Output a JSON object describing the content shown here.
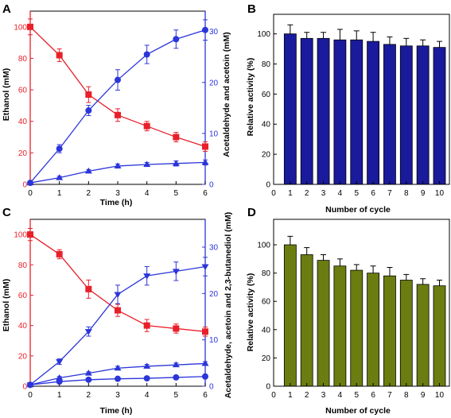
{
  "colors": {
    "red": "#e8202a",
    "blue": "#2b35d9",
    "navy": "#1a1a9c",
    "olive": "#6b7d10"
  },
  "chart_data": [
    {
      "panel": "A",
      "type": "line",
      "xlabel": "Time (h)",
      "ylabel_left": "Ethanol (mM)",
      "ylabel_right": "Acetaldehyde and acetoin (mM)",
      "x": [
        0,
        1,
        2,
        3,
        4,
        5,
        6
      ],
      "xlim": [
        0,
        6
      ],
      "ylim_left": [
        0,
        110
      ],
      "ylim_right": [
        0,
        34
      ],
      "left_ticks": [
        0,
        20,
        40,
        60,
        80,
        100
      ],
      "right_ticks": [
        0,
        10,
        20,
        30
      ],
      "x_ticks": [
        0,
        1,
        2,
        3,
        4,
        5,
        6
      ],
      "series": [
        {
          "axis": "left",
          "marker": "square",
          "color": "#e8202a",
          "values": [
            100,
            82,
            57,
            44,
            37,
            30,
            24
          ],
          "err": [
            5,
            4,
            5,
            4,
            3,
            3,
            3
          ]
        },
        {
          "axis": "right",
          "marker": "circle",
          "color": "#2b35d9",
          "values": [
            0.3,
            7,
            14.5,
            20.5,
            25.5,
            28.5,
            30.3
          ],
          "err": [
            0.3,
            0.8,
            1,
            2,
            1.8,
            1.8,
            2
          ]
        },
        {
          "axis": "right",
          "marker": "triangle-up",
          "color": "#2b35d9",
          "values": [
            0.3,
            1.3,
            2.6,
            3.6,
            3.9,
            4.1,
            4.3
          ],
          "err": [
            0.2,
            0.3,
            0.3,
            0.4,
            0.4,
            0.5,
            0.5
          ]
        }
      ]
    },
    {
      "panel": "B",
      "type": "bar",
      "xlabel": "Number of cycle",
      "ylabel": "Relative activity (%)",
      "color": "#1a1a9c",
      "categories": [
        1,
        2,
        3,
        4,
        5,
        6,
        7,
        8,
        9,
        10
      ],
      "values": [
        100,
        97,
        97,
        96,
        96,
        95,
        93,
        92,
        92,
        91
      ],
      "err": [
        6,
        4,
        4,
        7,
        6,
        6,
        5,
        5,
        4,
        4
      ],
      "xlim": [
        0,
        10.6
      ],
      "ylim": [
        0,
        113
      ],
      "y_ticks": [
        0,
        20,
        40,
        60,
        80,
        100
      ],
      "x_ticks": [
        0,
        1,
        2,
        3,
        4,
        5,
        6,
        7,
        8,
        9,
        10
      ]
    },
    {
      "panel": "C",
      "type": "line",
      "xlabel": "Time (h)",
      "ylabel_left": "Ethanol (mM)",
      "ylabel_right": "Acetaldehyde, acetoin and 2,3-butanediol (mM)",
      "x": [
        0,
        1,
        2,
        3,
        4,
        5,
        6
      ],
      "xlim": [
        0,
        6
      ],
      "ylim_left": [
        0,
        110
      ],
      "ylim_right": [
        0,
        36
      ],
      "left_ticks": [
        0,
        20,
        40,
        60,
        80,
        100
      ],
      "right_ticks": [
        0,
        10,
        20,
        30
      ],
      "x_ticks": [
        0,
        1,
        2,
        3,
        4,
        5,
        6
      ],
      "series": [
        {
          "axis": "left",
          "marker": "square",
          "color": "#e8202a",
          "values": [
            100,
            87,
            64,
            50,
            40,
            38,
            36
          ],
          "err": [
            4,
            3,
            6,
            4,
            4,
            3,
            3
          ]
        },
        {
          "axis": "right",
          "marker": "triangle-down",
          "color": "#2b35d9",
          "values": [
            0.3,
            5.3,
            11.8,
            19.8,
            23.8,
            24.8,
            25.8
          ],
          "err": [
            0.3,
            0.6,
            1,
            2,
            2,
            2,
            2
          ]
        },
        {
          "axis": "right",
          "marker": "triangle-up",
          "color": "#2b35d9",
          "values": [
            0.3,
            1.8,
            2.8,
            3.9,
            4.3,
            4.6,
            4.9
          ],
          "err": [
            0.2,
            0.3,
            0.3,
            0.4,
            0.4,
            0.4,
            0.4
          ]
        },
        {
          "axis": "right",
          "marker": "circle",
          "color": "#2b35d9",
          "values": [
            0.3,
            1,
            1.4,
            1.6,
            1.7,
            1.9,
            2.1
          ],
          "err": [
            0.2,
            0.2,
            0.2,
            0.2,
            0.2,
            0.2,
            0.2
          ]
        }
      ]
    },
    {
      "panel": "D",
      "type": "bar",
      "xlabel": "Number of cycle",
      "ylabel": "Relative activity (%)",
      "color": "#6b7d10",
      "categories": [
        1,
        2,
        3,
        4,
        5,
        6,
        7,
        8,
        9,
        10
      ],
      "values": [
        100,
        93,
        89,
        85,
        82,
        80,
        78,
        75,
        72,
        71
      ],
      "err": [
        6,
        5,
        4,
        5,
        4,
        5,
        6,
        4,
        4,
        4
      ],
      "xlim": [
        0,
        10.6
      ],
      "ylim": [
        0,
        118
      ],
      "y_ticks": [
        0,
        20,
        40,
        60,
        80,
        100
      ],
      "x_ticks": [
        0,
        1,
        2,
        3,
        4,
        5,
        6,
        7,
        8,
        9,
        10
      ]
    }
  ]
}
